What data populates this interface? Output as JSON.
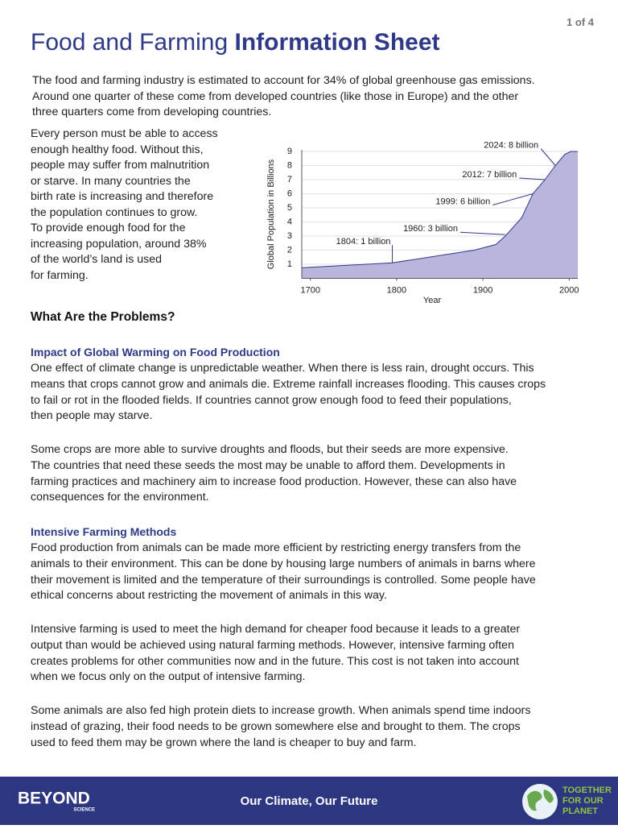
{
  "page_number": "1 of 4",
  "header": {
    "title_regular": "Food and Farming",
    "title_bold": "Information Sheet"
  },
  "intro": [
    "The food and farming industry is estimated to account for 34% of global greenhouse gas emissions.",
    "Around one quarter of these come from developed countries (like those in Europe) and the other",
    "three quarters come from developing countries."
  ],
  "sidebar": [
    "Every person must be able to access",
    "enough healthy food. Without this,",
    "people may suffer from malnutrition",
    "or starve. In many countries the",
    "birth rate is increasing and therefore",
    "the population continues to grow.",
    "To provide enough food for the",
    "increasing population, around 38%",
    "of the world’s land is used",
    "for farming."
  ],
  "chart_data": {
    "type": "area",
    "color": "#b9b5dc",
    "line_color": "#2e3a87",
    "xlabel": "Year",
    "ylabel": "Global Population in Billions",
    "x": [
      1690,
      1795,
      1890,
      1915,
      1926,
      1945,
      1958,
      1972,
      1984,
      1995,
      2002,
      2010
    ],
    "values": [
      0.75,
      1.1,
      2.0,
      2.4,
      3.0,
      4.3,
      6.0,
      7.0,
      8.0,
      8.8,
      9.0,
      9.0
    ],
    "xlim": [
      1690,
      2010
    ],
    "ylim": [
      0,
      9
    ],
    "xticks": [
      1700,
      1800,
      1900,
      2000
    ],
    "yticks": [
      1,
      2,
      3,
      4,
      5,
      6,
      7,
      8,
      9
    ],
    "grid": true,
    "annotations": [
      {
        "text": "1804: 1 billion",
        "x": 1795,
        "y": 1.1
      },
      {
        "text": "1960: 3 billion",
        "x": 1926,
        "y": 3.1
      },
      {
        "text": "1999: 6 billion",
        "x": 1958,
        "y": 6.0
      },
      {
        "text": "2012: 7 billion",
        "x": 1972,
        "y": 7.0
      },
      {
        "text": "2024: 8 billion",
        "x": 1984,
        "y": 8.0
      }
    ]
  },
  "problems": {
    "heading": "What Are the Problems?",
    "sections": [
      {
        "heading": "Impact of Global Warming on Food Production",
        "paragraphs": [
          [
            "One effect of climate change is unpredictable weather. When there is less rain, drought occurs. This",
            "means that crops cannot grow and animals die. Extreme rainfall increases flooding. This causes crops",
            "to fail or rot in the flooded fields. If countries cannot grow enough food to feed their populations,",
            "then people may starve."
          ],
          [
            "Some crops are more able to survive droughts and floods, but their seeds are more expensive.",
            "The countries that need these seeds the most may be unable to afford them. Developments in",
            "farming practices and machinery aim to increase food production. However, these can also have",
            "consequences for the environment."
          ]
        ]
      },
      {
        "heading": "Intensive Farming Methods",
        "paragraphs": [
          [
            "Food production from animals can be made more efficient by restricting energy transfers from the",
            "animals to their environment. This can be done by housing large numbers of animals in barns where",
            "their movement is limited and the temperature of their surroundings is controlled. Some people have",
            "ethical concerns about restricting the movement of animals in this way."
          ],
          [
            "Intensive farming is used to meet the high demand for cheaper food because it leads to a greater",
            "output than would be achieved using natural farming methods. However, intensive farming often",
            "creates problems for other communities now and in the future. This cost is not taken into account",
            "when we focus only on the output of intensive farming."
          ],
          [
            "Some animals are also fed high protein diets to increase growth. When animals spend time indoors",
            "instead of grazing, their food needs to be grown somewhere else and brought to them. The crops",
            "used to feed them may be grown where the land is cheaper to buy and farm."
          ]
        ]
      }
    ]
  },
  "footer": {
    "logo": "BEYOND",
    "logo_sub": "SCIENCE",
    "tagline": "Our Climate, Our Future",
    "partner": [
      "TOGETHER",
      "FOR OUR",
      "PLANET"
    ]
  }
}
